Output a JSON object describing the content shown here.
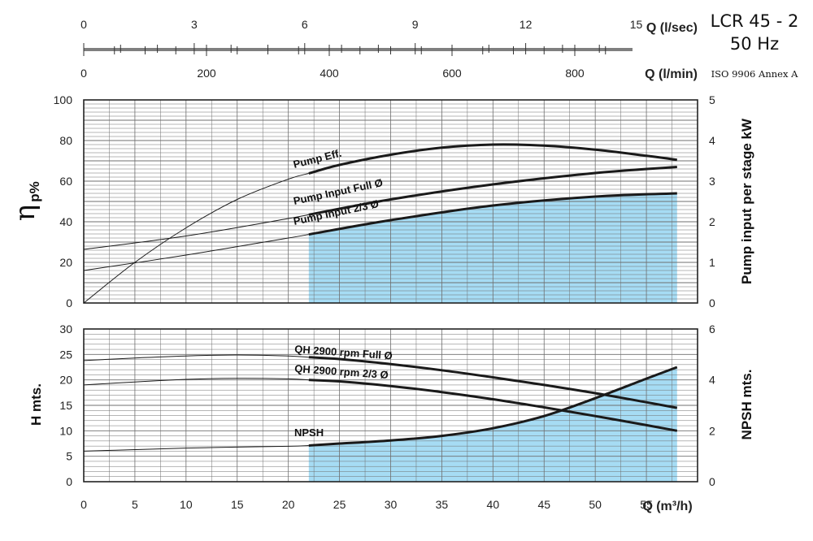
{
  "header": {
    "model": "LCR 45 - 2",
    "frequency": "50 Hz",
    "standard": "ISO 9906 Annex A"
  },
  "chart_data": [
    {
      "type": "line",
      "panel": "top",
      "xlim": [
        0,
        60
      ],
      "ylim": [
        0,
        100
      ],
      "y2lim": [
        0,
        5
      ],
      "ylabel_main": "η",
      "ylabel_sub": "p%",
      "y2label": "Pump input per stage kW",
      "y_ticks": [
        "0",
        "20",
        "40",
        "60",
        "80",
        "100"
      ],
      "y2_ticks": [
        "0",
        "1",
        "2",
        "3",
        "4",
        "5"
      ],
      "shaded_range": [
        22,
        58
      ],
      "shade_color": "#a6dcf4",
      "series": [
        {
          "name": "Pump Eff.",
          "axis": "left",
          "x": [
            0,
            5,
            10,
            15,
            20,
            25,
            30,
            35,
            40,
            45,
            50,
            55,
            58
          ],
          "values": [
            0,
            20,
            37,
            51,
            61,
            68,
            73,
            76.5,
            78,
            77.5,
            75.5,
            72.5,
            70.5
          ]
        },
        {
          "name": "Pump Input Full Ø",
          "axis": "right",
          "x": [
            0,
            10,
            20,
            30,
            40,
            50,
            58
          ],
          "values": [
            1.32,
            1.65,
            2.08,
            2.55,
            2.92,
            3.2,
            3.35
          ]
        },
        {
          "name": "Pump Input 2/3 Ø",
          "axis": "right",
          "x": [
            0,
            10,
            20,
            30,
            40,
            50,
            58
          ],
          "values": [
            0.8,
            1.18,
            1.6,
            2.04,
            2.4,
            2.62,
            2.7
          ]
        }
      ]
    },
    {
      "type": "line",
      "panel": "bottom",
      "xlim": [
        0,
        60
      ],
      "ylim": [
        0,
        30
      ],
      "y2lim": [
        0,
        6
      ],
      "xlabel": "Q (m³/h)",
      "ylabel": "H mts.",
      "y2label": "NPSH mts.",
      "x_ticks": [
        "0",
        "5",
        "10",
        "15",
        "20",
        "25",
        "30",
        "35",
        "40",
        "45",
        "50",
        "55"
      ],
      "y_ticks": [
        "0",
        "5",
        "10",
        "15",
        "20",
        "25",
        "30"
      ],
      "y2_ticks": [
        "0",
        "2",
        "4",
        "6"
      ],
      "shaded_range": [
        22,
        58
      ],
      "shade_color": "#a6dcf4",
      "series": [
        {
          "name": "QH 2900 rpm Full Ø",
          "axis": "left",
          "x": [
            0,
            5,
            10,
            15,
            20,
            25,
            30,
            35,
            40,
            45,
            50,
            55,
            58
          ],
          "values": [
            23.8,
            24.3,
            24.7,
            24.9,
            24.7,
            24.1,
            23.1,
            21.9,
            20.5,
            19,
            17.4,
            15.6,
            14.5
          ]
        },
        {
          "name": "QH 2900 rpm 2/3 Ø",
          "axis": "left",
          "x": [
            0,
            5,
            10,
            15,
            20,
            25,
            30,
            35,
            40,
            45,
            50,
            55,
            58
          ],
          "values": [
            19,
            19.6,
            20.1,
            20.3,
            20.2,
            19.7,
            18.8,
            17.6,
            16.2,
            14.6,
            12.9,
            11.1,
            10
          ]
        },
        {
          "name": "NPSH",
          "axis": "right",
          "x": [
            0,
            5,
            10,
            15,
            20,
            22,
            25,
            30,
            35,
            40,
            45,
            50,
            55,
            58
          ],
          "values": [
            1.2,
            1.26,
            1.32,
            1.36,
            1.39,
            1.42,
            1.5,
            1.62,
            1.8,
            2.1,
            2.58,
            3.28,
            4.05,
            4.5
          ]
        }
      ]
    }
  ],
  "secondary_axes": {
    "ls": {
      "label": "Q (l/sec)",
      "ticks": [
        0,
        3,
        6,
        9,
        12,
        15
      ]
    },
    "lm": {
      "label": "Q (l/min)",
      "ticks": [
        0,
        200,
        400,
        600,
        800
      ]
    }
  },
  "colors": {
    "curve": "#1a1a1a",
    "grid": "#6f6f6f",
    "shade": "#a6dcf4"
  }
}
